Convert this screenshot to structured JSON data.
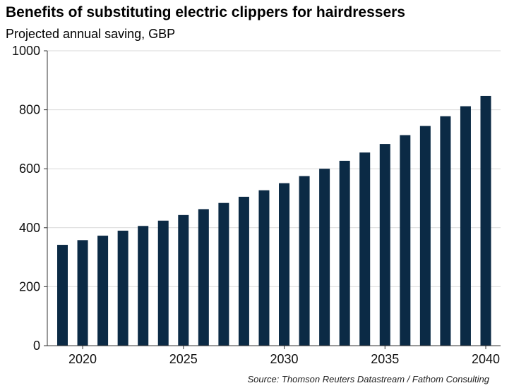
{
  "chart_data": {
    "type": "bar",
    "title": "Benefits of substituting electric clippers for hairdressers",
    "subtitle": "Projected annual saving, GBP",
    "xlabel": "",
    "ylabel": "",
    "source": "Source: Thomson Reuters Datastream / Fathom Consulting",
    "categories": [
      "2019",
      "2020",
      "2021",
      "2022",
      "2023",
      "2024",
      "2025",
      "2026",
      "2027",
      "2028",
      "2029",
      "2030",
      "2031",
      "2032",
      "2033",
      "2034",
      "2035",
      "2036",
      "2037",
      "2038",
      "2039",
      "2040"
    ],
    "values": [
      342,
      358,
      373,
      390,
      406,
      424,
      443,
      463,
      484,
      505,
      527,
      551,
      575,
      600,
      627,
      655,
      684,
      714,
      745,
      778,
      812,
      847
    ],
    "x_tick_labels": [
      "2020",
      "2025",
      "2030",
      "2035",
      "2040"
    ],
    "y_ticks": [
      0,
      200,
      400,
      600,
      800,
      1000
    ],
    "ylim": [
      0,
      1000
    ],
    "grid": true,
    "bar_color": "#0b2a45"
  }
}
